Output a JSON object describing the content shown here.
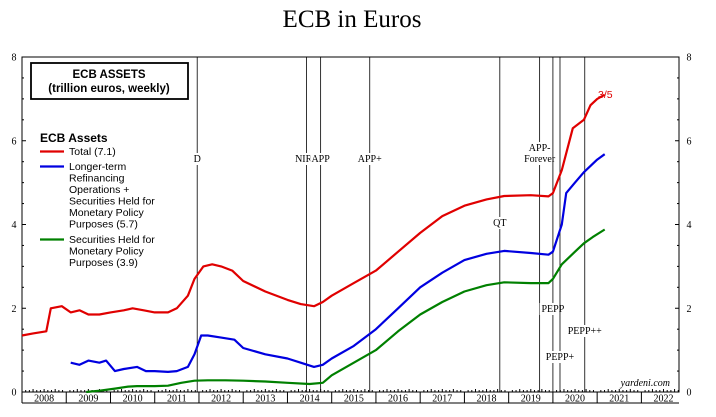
{
  "chart_data": {
    "type": "line",
    "title": "ECB in Euros",
    "box_title_line1": "ECB ASSETS",
    "box_title_line2": "(trillion euros, weekly)",
    "legend_title": "ECB Assets",
    "ylim": [
      0,
      8
    ],
    "y_ticks": [
      "0",
      "2",
      "4",
      "6",
      "8"
    ],
    "xlim": [
      2008.0,
      2022.85
    ],
    "x_tick_labels": [
      "2008",
      "2009",
      "2010",
      "2011",
      "2012",
      "2013",
      "2014",
      "2015",
      "2016",
      "2017",
      "2018",
      "2019",
      "2020",
      "2021",
      "2022"
    ],
    "grid": false,
    "end_label": "3/5",
    "credit": "yardeni.com",
    "colors": {
      "total": "#e00000",
      "ltro": "#0000e0",
      "sec": "#008000"
    },
    "event_lines": [
      {
        "x": 2011.96,
        "label": "D",
        "label_pos": "top"
      },
      {
        "x": 2014.43,
        "label": "NIRP",
        "label_pos": "top"
      },
      {
        "x": 2014.75,
        "label": "APP",
        "label_pos": "top"
      },
      {
        "x": 2015.86,
        "label": "APP+",
        "label_pos": "top"
      },
      {
        "x": 2018.8,
        "label": "QT",
        "label_pos": "mid"
      },
      {
        "x": 2019.7,
        "label": "APP-\nForever",
        "label_pos": "top"
      },
      {
        "x": 2020.0,
        "label": "PEPP",
        "label_pos": "low"
      },
      {
        "x": 2020.16,
        "label": "PEPP+",
        "label_pos": "bottom"
      },
      {
        "x": 2020.72,
        "label": "PEPP++",
        "label_pos": "lower"
      }
    ],
    "series": [
      {
        "name": "Total (7.1)",
        "key": "total",
        "points": [
          [
            2008.0,
            1.35
          ],
          [
            2008.25,
            1.4
          ],
          [
            2008.55,
            1.45
          ],
          [
            2008.65,
            2.0
          ],
          [
            2008.9,
            2.05
          ],
          [
            2009.1,
            1.9
          ],
          [
            2009.3,
            1.95
          ],
          [
            2009.5,
            1.85
          ],
          [
            2009.75,
            1.85
          ],
          [
            2010.0,
            1.9
          ],
          [
            2010.3,
            1.95
          ],
          [
            2010.5,
            2.0
          ],
          [
            2010.75,
            1.95
          ],
          [
            2011.0,
            1.9
          ],
          [
            2011.3,
            1.9
          ],
          [
            2011.5,
            2.0
          ],
          [
            2011.75,
            2.3
          ],
          [
            2011.9,
            2.7
          ],
          [
            2012.1,
            3.0
          ],
          [
            2012.3,
            3.05
          ],
          [
            2012.5,
            3.0
          ],
          [
            2012.75,
            2.9
          ],
          [
            2013.0,
            2.65
          ],
          [
            2013.5,
            2.4
          ],
          [
            2014.0,
            2.2
          ],
          [
            2014.3,
            2.1
          ],
          [
            2014.6,
            2.05
          ],
          [
            2014.8,
            2.15
          ],
          [
            2015.0,
            2.3
          ],
          [
            2015.5,
            2.6
          ],
          [
            2016.0,
            2.9
          ],
          [
            2016.5,
            3.35
          ],
          [
            2017.0,
            3.8
          ],
          [
            2017.5,
            4.2
          ],
          [
            2018.0,
            4.45
          ],
          [
            2018.5,
            4.6
          ],
          [
            2018.9,
            4.68
          ],
          [
            2019.5,
            4.7
          ],
          [
            2019.9,
            4.67
          ],
          [
            2020.0,
            4.75
          ],
          [
            2020.2,
            5.3
          ],
          [
            2020.45,
            6.3
          ],
          [
            2020.7,
            6.5
          ],
          [
            2020.85,
            6.85
          ],
          [
            2021.0,
            7.0
          ],
          [
            2021.17,
            7.1
          ]
        ]
      },
      {
        "name": "Longer-term Refinancing Operations + Securities Held for Monetary Policy Purposes (5.7)",
        "key": "ltro",
        "points": [
          [
            2009.1,
            0.7
          ],
          [
            2009.3,
            0.65
          ],
          [
            2009.5,
            0.75
          ],
          [
            2009.75,
            0.7
          ],
          [
            2009.9,
            0.75
          ],
          [
            2010.1,
            0.5
          ],
          [
            2010.3,
            0.55
          ],
          [
            2010.6,
            0.6
          ],
          [
            2010.8,
            0.5
          ],
          [
            2011.0,
            0.5
          ],
          [
            2011.3,
            0.48
          ],
          [
            2011.5,
            0.5
          ],
          [
            2011.75,
            0.6
          ],
          [
            2011.9,
            0.9
          ],
          [
            2012.05,
            1.35
          ],
          [
            2012.2,
            1.35
          ],
          [
            2012.5,
            1.3
          ],
          [
            2012.8,
            1.25
          ],
          [
            2013.0,
            1.05
          ],
          [
            2013.5,
            0.9
          ],
          [
            2014.0,
            0.8
          ],
          [
            2014.3,
            0.7
          ],
          [
            2014.6,
            0.6
          ],
          [
            2014.8,
            0.65
          ],
          [
            2015.0,
            0.8
          ],
          [
            2015.5,
            1.1
          ],
          [
            2016.0,
            1.5
          ],
          [
            2016.5,
            2.0
          ],
          [
            2017.0,
            2.5
          ],
          [
            2017.5,
            2.85
          ],
          [
            2018.0,
            3.15
          ],
          [
            2018.5,
            3.3
          ],
          [
            2018.9,
            3.37
          ],
          [
            2019.5,
            3.32
          ],
          [
            2019.9,
            3.28
          ],
          [
            2020.0,
            3.35
          ],
          [
            2020.2,
            4.0
          ],
          [
            2020.3,
            4.75
          ],
          [
            2020.5,
            5.0
          ],
          [
            2020.7,
            5.25
          ],
          [
            2020.85,
            5.4
          ],
          [
            2021.0,
            5.55
          ],
          [
            2021.17,
            5.68
          ]
        ]
      },
      {
        "name": "Securities Held for Monetary Policy Purposes (3.9)",
        "key": "sec",
        "points": [
          [
            2009.45,
            0.0
          ],
          [
            2009.75,
            0.03
          ],
          [
            2010.1,
            0.08
          ],
          [
            2010.4,
            0.13
          ],
          [
            2010.6,
            0.14
          ],
          [
            2011.0,
            0.14
          ],
          [
            2011.3,
            0.15
          ],
          [
            2011.6,
            0.22
          ],
          [
            2011.9,
            0.27
          ],
          [
            2012.2,
            0.28
          ],
          [
            2012.6,
            0.28
          ],
          [
            2013.0,
            0.27
          ],
          [
            2013.5,
            0.25
          ],
          [
            2014.0,
            0.22
          ],
          [
            2014.5,
            0.19
          ],
          [
            2014.8,
            0.22
          ],
          [
            2015.0,
            0.4
          ],
          [
            2015.5,
            0.7
          ],
          [
            2016.0,
            1.0
          ],
          [
            2016.5,
            1.45
          ],
          [
            2017.0,
            1.85
          ],
          [
            2017.5,
            2.15
          ],
          [
            2018.0,
            2.4
          ],
          [
            2018.5,
            2.55
          ],
          [
            2018.9,
            2.62
          ],
          [
            2019.5,
            2.6
          ],
          [
            2019.9,
            2.6
          ],
          [
            2020.0,
            2.7
          ],
          [
            2020.2,
            3.05
          ],
          [
            2020.5,
            3.35
          ],
          [
            2020.7,
            3.55
          ],
          [
            2020.9,
            3.7
          ],
          [
            2021.17,
            3.88
          ]
        ]
      }
    ]
  }
}
